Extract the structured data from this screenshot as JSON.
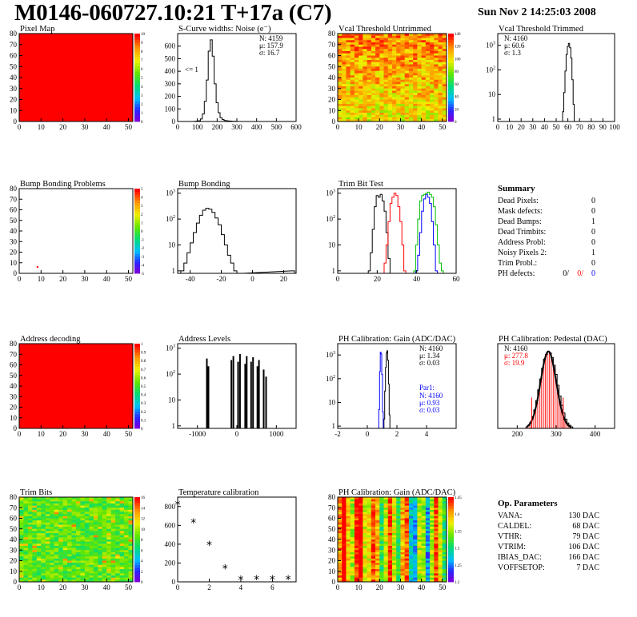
{
  "header": {
    "title": "M0146-060727.10:21 T+17a (C7)",
    "date": "Sun Nov  2 14:25:03 2008"
  },
  "colors": {
    "red": "#ff0000",
    "blue": "#0000ff",
    "green": "#00c000",
    "black": "#000000"
  },
  "chart_data": [
    {
      "id": "pixel_map",
      "type": "heatmap",
      "title": "Pixel Map",
      "xlim": [
        0,
        52
      ],
      "ylim": [
        0,
        80
      ],
      "xticks": [
        "0",
        "10",
        "20",
        "30",
        "40",
        "50"
      ],
      "yticks": [
        "0",
        "10",
        "20",
        "30",
        "40",
        "50",
        "60",
        "70",
        "80"
      ],
      "zlim": [
        0,
        10
      ],
      "zticks": [
        "0",
        "1",
        "2",
        "3",
        "4",
        "5",
        "6",
        "7",
        "8",
        "9",
        "10"
      ],
      "fill": "uniform-max"
    },
    {
      "id": "scurve",
      "type": "histogram",
      "title": "S-Curve widths: Noise (e⁻)",
      "xlim": [
        0,
        600
      ],
      "ylim": [
        0,
        700
      ],
      "xticks": [
        "0",
        "100",
        "200",
        "300",
        "400",
        "500",
        "600"
      ],
      "yticks": [
        "0",
        "100",
        "200",
        "300",
        "400",
        "500",
        "600"
      ],
      "stats": [
        "N: 4159",
        "μ: 157.9",
        "σ: 16.7"
      ],
      "annotation": "<= 1",
      "centers": [
        90,
        100,
        110,
        120,
        130,
        140,
        150,
        160,
        170,
        180,
        190,
        200,
        210,
        220,
        230,
        240,
        250,
        260,
        270,
        280,
        290
      ],
      "values": [
        2,
        3,
        6,
        20,
        60,
        160,
        330,
        560,
        650,
        520,
        300,
        150,
        70,
        30,
        15,
        8,
        6,
        4,
        3,
        2,
        1
      ]
    },
    {
      "id": "vcal_untrimmed",
      "type": "heatmap",
      "title": "Vcal Threshold Untrimmed",
      "xlim": [
        0,
        52
      ],
      "ylim": [
        0,
        80
      ],
      "xticks": [
        "0",
        "10",
        "20",
        "30",
        "40",
        "50"
      ],
      "yticks": [
        "0",
        "10",
        "20",
        "30",
        "40",
        "50",
        "60",
        "70",
        "80"
      ],
      "zticks": [
        "0",
        "20",
        "40",
        "60",
        "80",
        "100",
        "120",
        "140"
      ],
      "fill": "noise-orange"
    },
    {
      "id": "vcal_trimmed",
      "type": "histogram",
      "log": true,
      "title": "Vcal Threshold Trimmed",
      "xlim": [
        0,
        100
      ],
      "ylim": [
        0.8,
        3000
      ],
      "xticks": [
        "0",
        "10",
        "20",
        "30",
        "40",
        "50",
        "60",
        "70",
        "80",
        "90",
        "100"
      ],
      "yticks": [
        "1",
        "10",
        "10²",
        "10³"
      ],
      "stats": [
        "N: 4160",
        "μ: 60.6",
        "σ:  1.3"
      ],
      "centers": [
        56,
        57,
        58,
        59,
        60,
        61,
        62,
        63,
        64,
        65
      ],
      "values": [
        2,
        12,
        90,
        420,
        900,
        1200,
        800,
        300,
        40,
        4
      ]
    },
    {
      "id": "bump_problems",
      "type": "heatmap",
      "title": "Bump Bonding Problems",
      "xlim": [
        0,
        52
      ],
      "ylim": [
        0,
        80
      ],
      "xticks": [
        "0",
        "10",
        "20",
        "30",
        "40",
        "50"
      ],
      "yticks": [
        "0",
        "10",
        "20",
        "30",
        "40",
        "50",
        "60",
        "70",
        "80"
      ],
      "zticks": [
        "-5",
        "-4",
        "-3",
        "-2",
        "-1",
        "0",
        "1",
        "2",
        "3",
        "4",
        "5"
      ],
      "fill": "empty",
      "points": [
        [
          8,
          6
        ]
      ]
    },
    {
      "id": "bump_bonding",
      "type": "histogram",
      "log": true,
      "title": "Bump Bonding",
      "xlim": [
        -48,
        28
      ],
      "ylim": [
        0.8,
        1500
      ],
      "xticks": [
        "-40",
        "-20",
        "0",
        "20"
      ],
      "yticks": [
        "1",
        "10",
        "10²",
        "10³"
      ],
      "centers": [
        -45,
        -43,
        -41,
        -39,
        -37,
        -35,
        -33,
        -31,
        -29,
        -27,
        -25,
        -23,
        -21,
        -19,
        -17,
        -15,
        -13,
        -11,
        -9,
        -7,
        26
      ],
      "values": [
        1,
        2,
        5,
        12,
        30,
        70,
        140,
        220,
        260,
        240,
        180,
        110,
        60,
        25,
        10,
        4,
        2,
        1,
        0,
        0,
        1
      ]
    },
    {
      "id": "trim_bit_test",
      "type": "histogram",
      "log": true,
      "title": "Trim Bit Test",
      "xlim": [
        0,
        60
      ],
      "ylim": [
        0.8,
        1500
      ],
      "xticks": [
        "0",
        "20",
        "40",
        "60"
      ],
      "yticks": [
        "1",
        "10",
        "10²",
        "10³"
      ],
      "series": [
        {
          "name": "",
          "color": "#000000",
          "centers": [
            16,
            17,
            18,
            19,
            20,
            21,
            22,
            23,
            24,
            25,
            26
          ],
          "values": [
            1,
            5,
            40,
            300,
            800,
            700,
            900,
            500,
            200,
            30,
            3
          ]
        },
        {
          "name": "",
          "color": "#ff0000",
          "centers": [
            24,
            25,
            26,
            27,
            28,
            29,
            30,
            31,
            32,
            33,
            34
          ],
          "values": [
            2,
            10,
            80,
            400,
            700,
            1000,
            800,
            300,
            80,
            10,
            1
          ]
        },
        {
          "name": "",
          "color": "#0000ff",
          "centers": [
            40,
            41,
            42,
            43,
            44,
            45,
            46,
            47,
            48,
            49,
            50
          ],
          "values": [
            1,
            4,
            30,
            200,
            600,
            900,
            700,
            400,
            80,
            10,
            1
          ]
        },
        {
          "name": "",
          "color": "#00c000",
          "centers": [
            39,
            40,
            41,
            42,
            43,
            44,
            45,
            46,
            47,
            48,
            49,
            50,
            51,
            52,
            53
          ],
          "values": [
            1,
            10,
            100,
            500,
            800,
            900,
            1000,
            1100,
            900,
            700,
            300,
            60,
            10,
            2,
            1
          ]
        }
      ]
    },
    {
      "id": "address_decoding",
      "type": "heatmap",
      "title": "Address decoding",
      "xlim": [
        0,
        52
      ],
      "ylim": [
        0,
        80
      ],
      "xticks": [
        "0",
        "10",
        "20",
        "30",
        "40",
        "50"
      ],
      "yticks": [
        "0",
        "10",
        "20",
        "30",
        "40",
        "50",
        "60",
        "70",
        "80"
      ],
      "zticks": [
        "0",
        "0.1",
        "0.2",
        "0.3",
        "0.4",
        "0.5",
        "0.6",
        "0.7",
        "0.8",
        "0.9",
        "1"
      ],
      "fill": "uniform-max"
    },
    {
      "id": "address_levels",
      "type": "histogram",
      "log": true,
      "title": "Address Levels",
      "xlim": [
        -1500,
        1500
      ],
      "ylim": [
        0.8,
        1500
      ],
      "xticks": [
        "-1000",
        "0",
        "1000"
      ],
      "yticks": [
        "1",
        "10",
        "10²",
        "10³"
      ],
      "centers": [
        -760,
        -720,
        -140,
        -90,
        30,
        80,
        210,
        250,
        360,
        410,
        520,
        560,
        680,
        740
      ],
      "values": [
        400,
        200,
        350,
        500,
        300,
        600,
        250,
        500,
        300,
        450,
        200,
        350,
        150,
        80
      ]
    },
    {
      "id": "ph_gain",
      "type": "histogram",
      "log": true,
      "title": "PH Calibration: Gain (ADC/DAC)",
      "xlim": [
        -2,
        6
      ],
      "ylim": [
        0.8,
        3000
      ],
      "xticks": [
        "-2",
        "0",
        "2",
        "4"
      ],
      "yticks": [
        "1",
        "10",
        "10²",
        "10³"
      ],
      "stats": [
        "N: 4160",
        "μ: 1.34",
        "σ: 0.03"
      ],
      "stats2_title": "Par1:",
      "stats2": [
        "N: 4160",
        "μ: 0.93",
        "σ: 0.03"
      ],
      "series": [
        {
          "name": "",
          "color": "#000000",
          "centers": [
            1.15,
            1.2,
            1.25,
            1.3,
            1.35,
            1.4,
            1.45,
            1.5
          ],
          "values": [
            2,
            30,
            300,
            1200,
            1500,
            600,
            60,
            3
          ]
        },
        {
          "name": "Par1",
          "color": "#0000ff",
          "centers": [
            0.8,
            0.85,
            0.9,
            0.95,
            1.0,
            1.05
          ],
          "values": [
            5,
            200,
            1300,
            1100,
            150,
            4
          ]
        }
      ]
    },
    {
      "id": "ph_pedestal",
      "type": "histogram",
      "title": "PH Calibration: Pedestal (DAC)",
      "xlim": [
        150,
        450
      ],
      "ylim": [
        0,
        110
      ],
      "xticks": [
        "200",
        "300",
        "400"
      ],
      "yticks": [],
      "stats": [
        "N: 4160",
        "μ: 277.8",
        "σ: 19.9"
      ],
      "fit_color": "#ff0000",
      "centers": [
        225,
        230,
        235,
        240,
        245,
        250,
        255,
        260,
        265,
        270,
        275,
        280,
        285,
        290,
        295,
        300,
        305,
        310,
        315,
        320,
        325,
        330,
        335,
        340
      ],
      "values": [
        2,
        4,
        8,
        15,
        24,
        36,
        50,
        64,
        78,
        90,
        96,
        100,
        98,
        92,
        82,
        70,
        56,
        42,
        30,
        20,
        12,
        7,
        4,
        2
      ]
    },
    {
      "id": "trim_bits",
      "type": "heatmap",
      "title": "Trim Bits",
      "xlim": [
        0,
        52
      ],
      "ylim": [
        0,
        80
      ],
      "xticks": [
        "0",
        "10",
        "20",
        "30",
        "40",
        "50"
      ],
      "yticks": [
        "0",
        "10",
        "20",
        "30",
        "40",
        "50",
        "60",
        "70",
        "80"
      ],
      "zticks": [
        "0",
        "2",
        "4",
        "6",
        "8",
        "10",
        "12",
        "14",
        "16"
      ],
      "fill": "noise-green"
    },
    {
      "id": "temperature",
      "type": "scatter",
      "title": "Temperature calibration",
      "xlim": [
        0,
        7.5
      ],
      "ylim": [
        0,
        900
      ],
      "xticks": [
        "0",
        "2",
        "4",
        "6"
      ],
      "yticks": [
        "0",
        "200",
        "400",
        "600",
        "800"
      ],
      "x": [
        0,
        1,
        2,
        3,
        4,
        5,
        6,
        7
      ],
      "y": [
        820,
        630,
        390,
        140,
        20,
        25,
        25,
        25
      ]
    },
    {
      "id": "ph_gain_map",
      "type": "heatmap",
      "title": "PH Calibration: Gain (ADC/DAC)",
      "xlim": [
        0,
        52
      ],
      "ylim": [
        0,
        80
      ],
      "xticks": [
        "0",
        "10",
        "20",
        "30",
        "40",
        "50"
      ],
      "yticks": [
        "0",
        "10",
        "20",
        "30",
        "40",
        "50",
        "60",
        "70",
        "80"
      ],
      "zticks": [
        "1.2",
        "1.25",
        "1.3",
        "1.35",
        "1.4",
        "1.45"
      ],
      "fill": "stripes"
    }
  ],
  "summary": {
    "title": "Summary",
    "rows": [
      {
        "label": "Dead Pixels:",
        "value": "0"
      },
      {
        "label": "Mask defects:",
        "value": "0"
      },
      {
        "label": "Dead Bumps:",
        "value": "1"
      },
      {
        "label": "Dead Trimbits:",
        "value": "0"
      },
      {
        "label": "Address Probl:",
        "value": "0"
      },
      {
        "label": "Noisy Pixels 2:",
        "value": "1"
      },
      {
        "label": "Trim Probl.:",
        "value": "0"
      }
    ],
    "ph": {
      "label": "PH defects:",
      "v1": "0/",
      "v2": "0/",
      "v3": "0"
    }
  },
  "op_params": {
    "title": "Op. Parameters",
    "rows": [
      {
        "label": "VANA:",
        "value": "130 DAC"
      },
      {
        "label": "CALDEL:",
        "value": "68 DAC"
      },
      {
        "label": "VTHR:",
        "value": "79 DAC"
      },
      {
        "label": "VTRIM:",
        "value": "106 DAC"
      },
      {
        "label": "IBIAS_DAC:",
        "value": "166 DAC"
      },
      {
        "label": "VOFFSETOP:",
        "value": "7 DAC"
      }
    ]
  }
}
